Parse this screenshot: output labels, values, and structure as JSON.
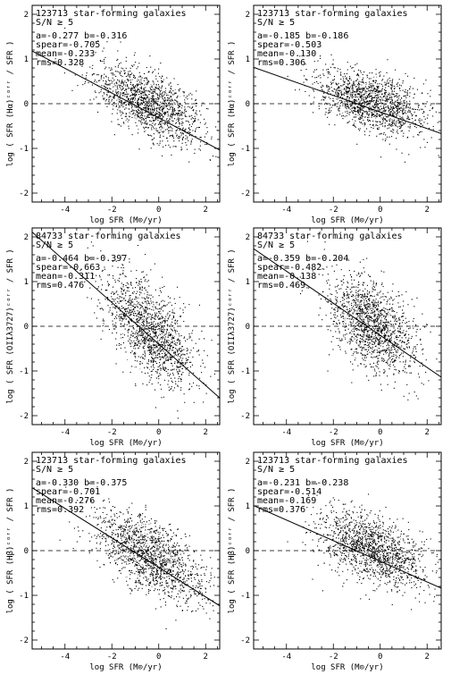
{
  "figure": {
    "panel_count": 6,
    "dot_color": "#000000",
    "contour_color": "#ffffff"
  },
  "chart_data": [
    {
      "type": "scatter",
      "sample": "123713 star-forming galaxies",
      "sn_cut": "S/N ≥ 5",
      "fit_text": "a=-0.277    b=-0.316",
      "spear_text": "spear=-0.705",
      "mean_text": "mean=-0.233",
      "rms_text": "rms=0.328",
      "fit": {
        "a": -0.277,
        "b": -0.316
      },
      "spearman": -0.705,
      "mean": -0.233,
      "rms": 0.328,
      "ylabel": "log ( SFR (Hα)ᶜᵒʳʳ / SFR )",
      "xlabel": "log SFR (M⊙/yr)",
      "xlim": [
        -5.4,
        2.6
      ],
      "ylim": [
        -2.2,
        2.2
      ],
      "xticks": [
        -4,
        -2,
        0,
        2
      ],
      "yticks": [
        -2,
        -1,
        0,
        1,
        2
      ],
      "reference_line_y": 0,
      "cloud": {
        "x_center": -0.4,
        "y_center": 0.0,
        "x_spread": 1.15,
        "y_spread": 0.34,
        "count": 1500
      }
    },
    {
      "type": "scatter",
      "sample": "123713 star-forming galaxies",
      "sn_cut": "S/N ≥ 5",
      "fit_text": "a=-0.185    b=-0.186",
      "spear_text": "spear=-0.503",
      "mean_text": "mean=-0.130",
      "rms_text": "rms=0.306",
      "fit": {
        "a": -0.185,
        "b": -0.186
      },
      "spearman": -0.503,
      "mean": -0.13,
      "rms": 0.306,
      "ylabel": "log ( SFR (Hα)ᶜᵒʳʳ / SFR )",
      "xlabel": "log SFR (M⊙/yr)",
      "xlim": [
        -5.4,
        2.6
      ],
      "ylim": [
        -2.2,
        2.2
      ],
      "xticks": [
        -4,
        -2,
        0,
        2
      ],
      "yticks": [
        -2,
        -1,
        0,
        1,
        2
      ],
      "reference_line_y": 0,
      "cloud": {
        "x_center": -0.4,
        "y_center": 0.05,
        "x_spread": 1.15,
        "y_spread": 0.32,
        "count": 1500
      }
    },
    {
      "type": "scatter",
      "sample": "84733 star-forming galaxies",
      "sn_cut": "S/N ≥ 5",
      "fit_text": "a=-0.464    b=-0.397",
      "spear_text": "spear=-0.663",
      "mean_text": "mean=-0.311",
      "rms_text": "rms=0.476",
      "fit": {
        "a": -0.464,
        "b": -0.397
      },
      "spearman": -0.663,
      "mean": -0.311,
      "rms": 0.476,
      "ylabel": "log ( SFR (OIIλ3727)ᶜᵒʳʳ / SFR )",
      "xlabel": "log SFR (M⊙/yr)",
      "xlim": [
        -5.4,
        2.6
      ],
      "ylim": [
        -2.2,
        2.2
      ],
      "xticks": [
        -4,
        -2,
        0,
        2
      ],
      "yticks": [
        -2,
        -1,
        0,
        1,
        2
      ],
      "reference_line_y": 0,
      "cloud": {
        "x_center": -0.4,
        "y_center": -0.1,
        "x_spread": 0.95,
        "y_spread": 0.5,
        "count": 1500
      }
    },
    {
      "type": "scatter",
      "sample": "84733 star-forming galaxies",
      "sn_cut": "S/N ≥ 5",
      "fit_text": "a=-0.359    b=-0.204",
      "spear_text": "spear=-0.482",
      "mean_text": "mean=-0.138",
      "rms_text": "rms=0.469",
      "fit": {
        "a": -0.359,
        "b": -0.204
      },
      "spearman": -0.482,
      "mean": -0.138,
      "rms": 0.469,
      "ylabel": "log ( SFR (OIIλ3727)ᶜᵒʳʳ / SFR )",
      "xlabel": "log SFR (M⊙/yr)",
      "xlim": [
        -5.4,
        2.6
      ],
      "ylim": [
        -2.2,
        2.2
      ],
      "xticks": [
        -4,
        -2,
        0,
        2
      ],
      "yticks": [
        -2,
        -1,
        0,
        1,
        2
      ],
      "reference_line_y": 0,
      "cloud": {
        "x_center": -0.4,
        "y_center": 0.05,
        "x_spread": 0.95,
        "y_spread": 0.5,
        "count": 1500
      }
    },
    {
      "type": "scatter",
      "sample": "123713 star-forming galaxies",
      "sn_cut": "S/N ≥ 5",
      "fit_text": "a=-0.330    b=-0.375",
      "spear_text": "spear=-0.701",
      "mean_text": "mean=-0.276",
      "rms_text": "rms=0.392",
      "fit": {
        "a": -0.33,
        "b": -0.375
      },
      "spearman": -0.701,
      "mean": -0.276,
      "rms": 0.392,
      "ylabel": "log ( SFR (Hβ)ᶜᵒʳʳ / SFR )",
      "xlabel": "log SFR (M⊙/yr)",
      "xlim": [
        -5.4,
        2.6
      ],
      "ylim": [
        -2.2,
        2.2
      ],
      "xticks": [
        -4,
        -2,
        0,
        2
      ],
      "yticks": [
        -2,
        -1,
        0,
        1,
        2
      ],
      "reference_line_y": 0,
      "cloud": {
        "x_center": -0.4,
        "y_center": -0.1,
        "x_spread": 1.15,
        "y_spread": 0.4,
        "count": 1500
      }
    },
    {
      "type": "scatter",
      "sample": "123713 star-forming galaxies",
      "sn_cut": "S/N ≥ 5",
      "fit_text": "a=-0.231    b=-0.238",
      "spear_text": "spear=-0.514",
      "mean_text": "mean=-0.169",
      "rms_text": "rms=0.376",
      "fit": {
        "a": -0.231,
        "b": -0.238
      },
      "spearman": -0.514,
      "mean": -0.169,
      "rms": 0.376,
      "ylabel": "log ( SFR (Hβ)ᶜᵒʳʳ / SFR )",
      "xlabel": "log SFR (M⊙/yr)",
      "xlim": [
        -5.4,
        2.6
      ],
      "ylim": [
        -2.2,
        2.2
      ],
      "xticks": [
        -4,
        -2,
        0,
        2
      ],
      "yticks": [
        -2,
        -1,
        0,
        1,
        2
      ],
      "reference_line_y": 0,
      "cloud": {
        "x_center": -0.4,
        "y_center": 0.05,
        "x_spread": 1.15,
        "y_spread": 0.37,
        "count": 1500
      }
    }
  ]
}
